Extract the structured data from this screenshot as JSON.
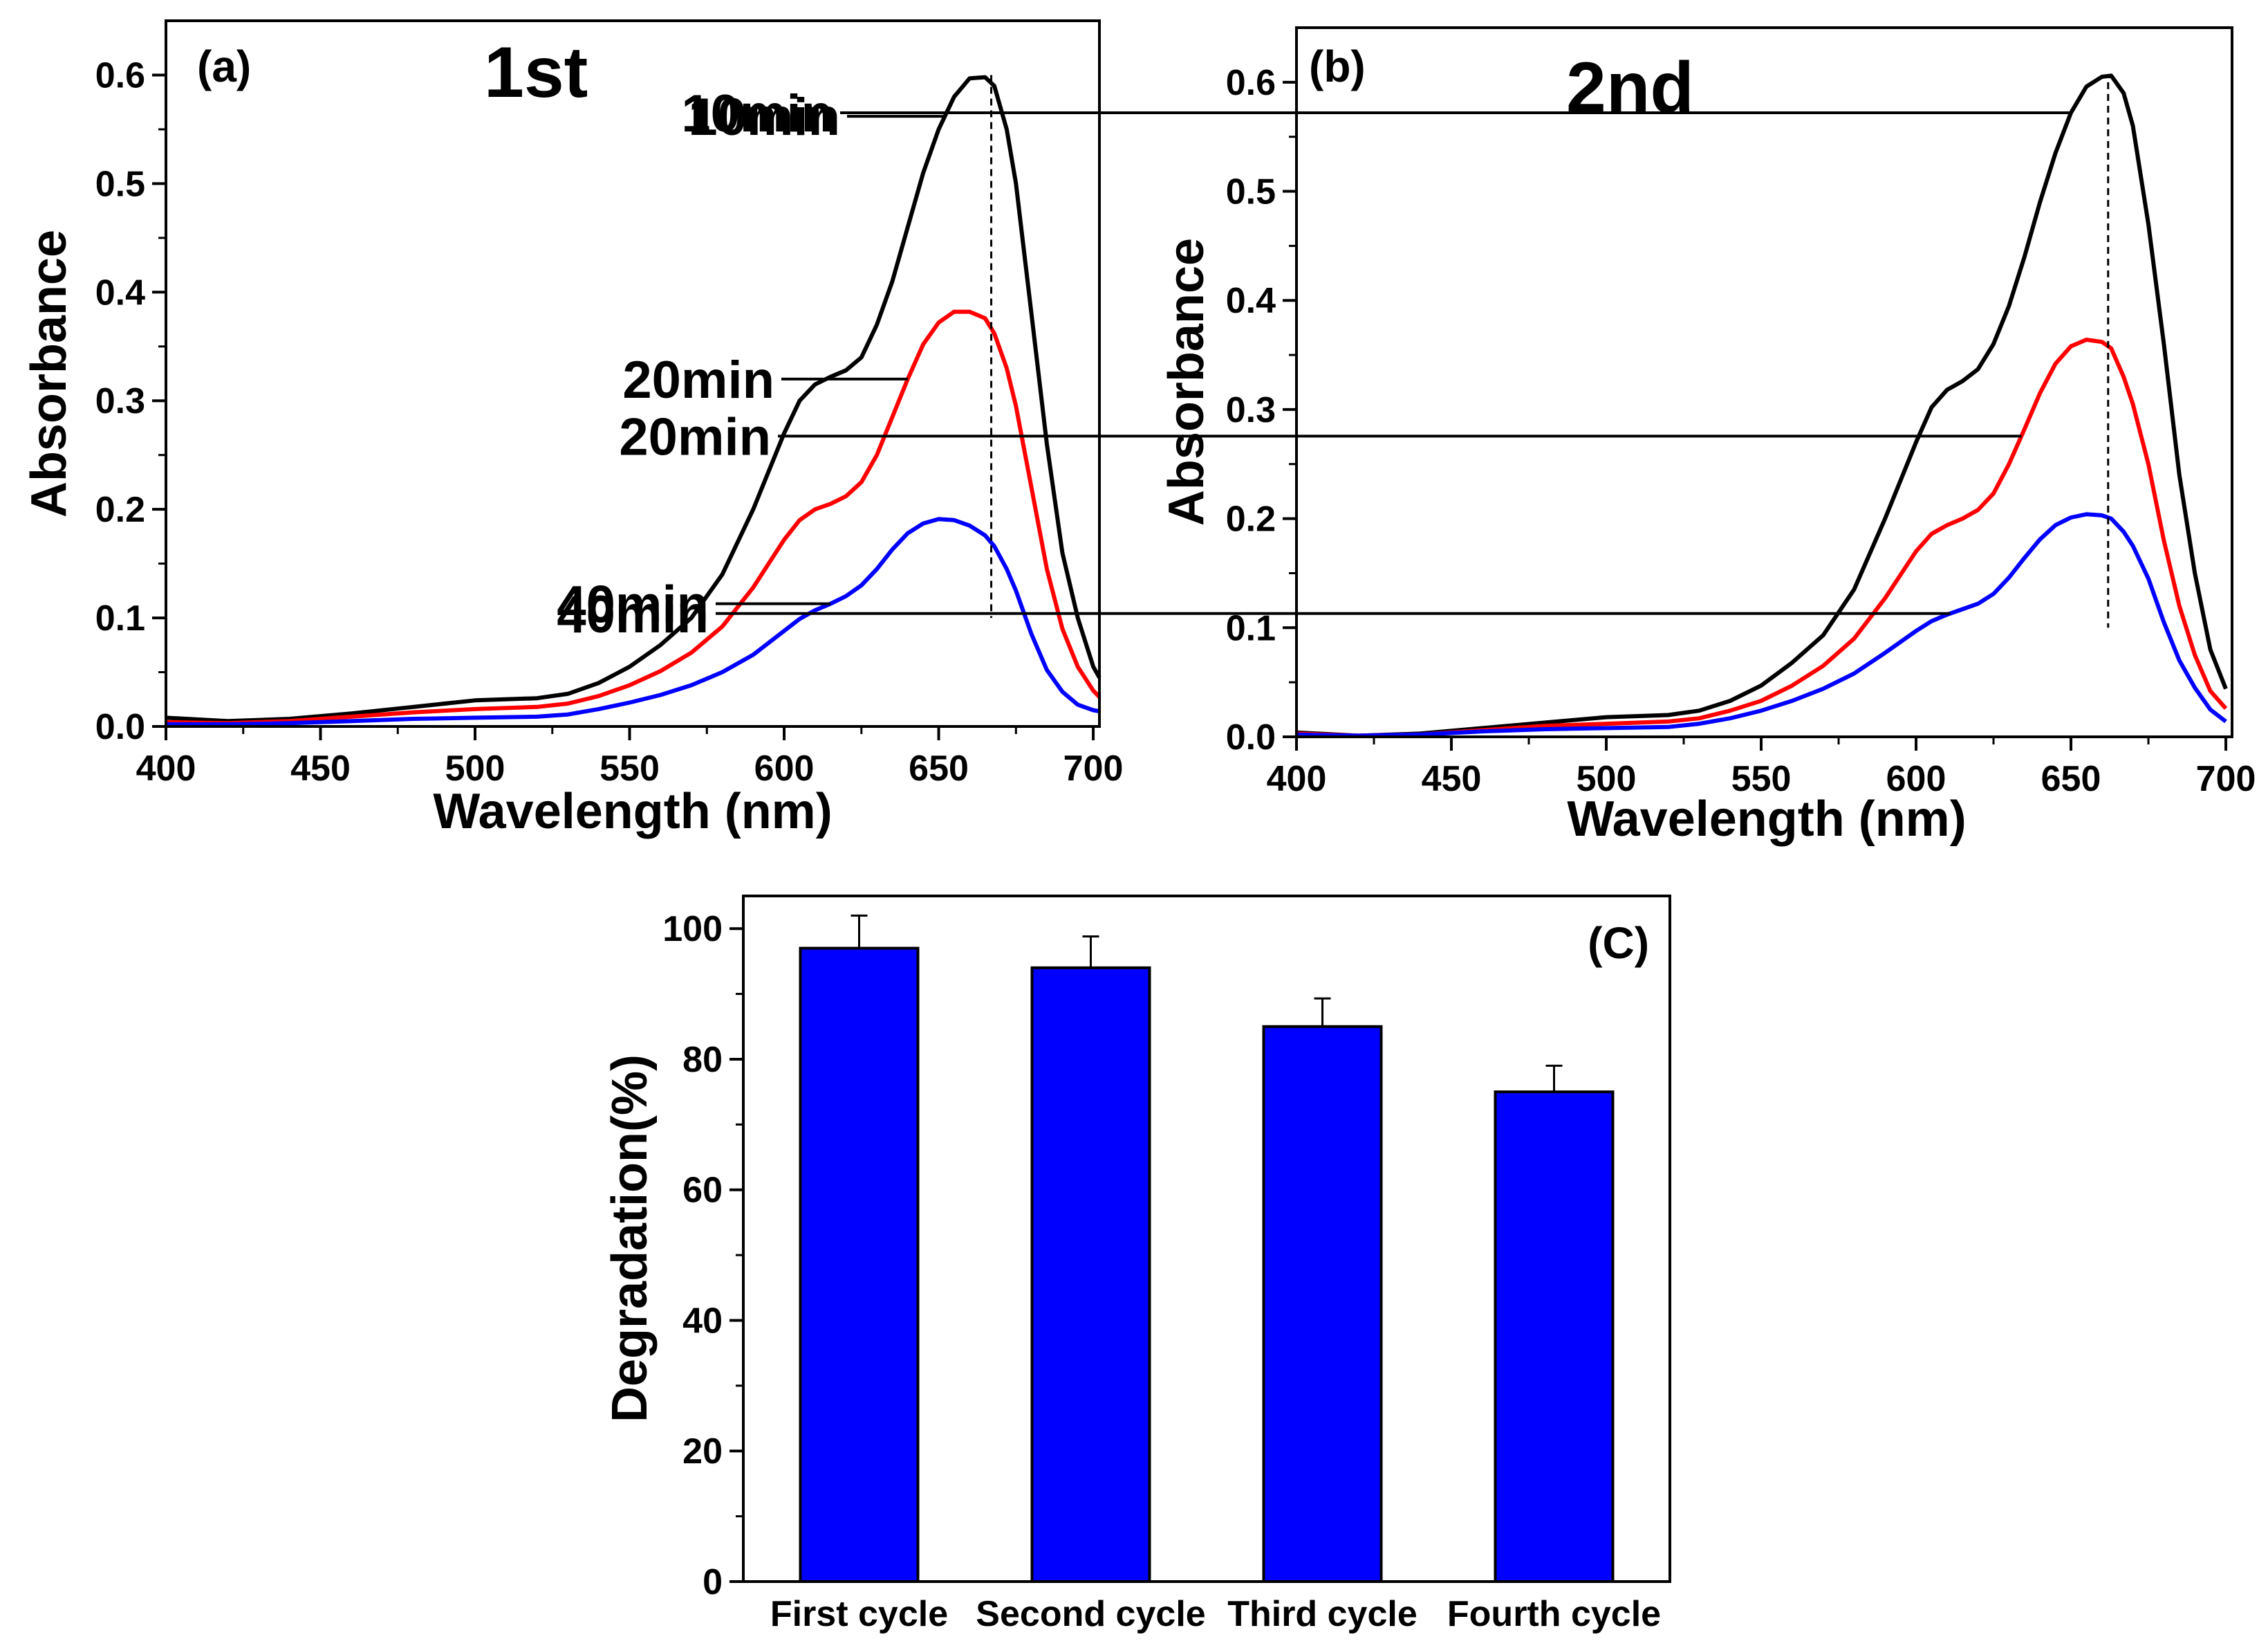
{
  "colors": {
    "10min": "#000000",
    "20min": "#ff0000",
    "40min": "#0000ff",
    "bar": "#0000ff"
  },
  "chart_data": [
    {
      "type": "line",
      "panel": "(a)",
      "title": "1st",
      "xlabel": "Wavelength (nm)",
      "ylabel": "Absorbance",
      "xlim": [
        400,
        702
      ],
      "ylim": [
        0,
        0.65
      ],
      "xticks": [
        400,
        450,
        500,
        550,
        600,
        650,
        700
      ],
      "yticks": [
        0.0,
        0.1,
        0.2,
        0.3,
        0.4,
        0.5,
        0.6
      ],
      "ytick_labels": [
        "0.0",
        "0.1",
        "0.2",
        "0.3",
        "0.4",
        "0.5",
        "0.6"
      ],
      "peak_marker_x": 667,
      "x": [
        400,
        420,
        440,
        460,
        480,
        500,
        520,
        530,
        540,
        550,
        560,
        570,
        580,
        590,
        600,
        605,
        610,
        615,
        620,
        625,
        630,
        635,
        640,
        645,
        650,
        655,
        660,
        665,
        668,
        672,
        675,
        680,
        685,
        690,
        695,
        700,
        702
      ],
      "series": [
        {
          "name": "10min",
          "values": [
            0.008,
            0.005,
            0.007,
            0.012,
            0.018,
            0.024,
            0.026,
            0.03,
            0.04,
            0.055,
            0.075,
            0.1,
            0.14,
            0.2,
            0.27,
            0.3,
            0.315,
            0.322,
            0.328,
            0.34,
            0.37,
            0.41,
            0.46,
            0.51,
            0.55,
            0.58,
            0.597,
            0.598,
            0.59,
            0.55,
            0.5,
            0.38,
            0.26,
            0.16,
            0.1,
            0.055,
            0.045
          ]
        },
        {
          "name": "20min",
          "values": [
            0.004,
            0.003,
            0.005,
            0.009,
            0.013,
            0.016,
            0.018,
            0.021,
            0.028,
            0.038,
            0.051,
            0.068,
            0.092,
            0.128,
            0.172,
            0.19,
            0.2,
            0.205,
            0.212,
            0.225,
            0.25,
            0.285,
            0.32,
            0.352,
            0.372,
            0.382,
            0.382,
            0.376,
            0.362,
            0.33,
            0.295,
            0.22,
            0.145,
            0.09,
            0.055,
            0.033,
            0.027
          ]
        },
        {
          "name": "40min",
          "values": [
            0.002,
            0.002,
            0.003,
            0.005,
            0.007,
            0.008,
            0.009,
            0.011,
            0.016,
            0.022,
            0.029,
            0.038,
            0.05,
            0.066,
            0.088,
            0.099,
            0.107,
            0.113,
            0.12,
            0.13,
            0.145,
            0.163,
            0.178,
            0.187,
            0.191,
            0.19,
            0.185,
            0.176,
            0.166,
            0.145,
            0.125,
            0.085,
            0.052,
            0.032,
            0.02,
            0.015,
            0.014
          ]
        }
      ],
      "annotations": [
        {
          "text": "10min",
          "series": "10min",
          "at_x": 652
        },
        {
          "text": "20min",
          "series": "20min",
          "at_x": 640
        },
        {
          "text": "40min",
          "series": "40min",
          "at_x": 615
        }
      ]
    },
    {
      "type": "line",
      "panel": "(b)",
      "title": "2nd",
      "xlabel": "Wavelength (nm)",
      "ylabel": "Absorbance",
      "xlim": [
        400,
        702
      ],
      "ylim": [
        0,
        0.65
      ],
      "xticks": [
        400,
        450,
        500,
        550,
        600,
        650,
        700
      ],
      "yticks": [
        0.0,
        0.1,
        0.2,
        0.3,
        0.4,
        0.5,
        0.6
      ],
      "ytick_labels": [
        "0.0",
        "0.1",
        "0.2",
        "0.3",
        "0.4",
        "0.5",
        "0.6"
      ],
      "peak_marker_x": 662,
      "x": [
        400,
        420,
        440,
        460,
        480,
        500,
        520,
        530,
        540,
        550,
        560,
        570,
        580,
        590,
        600,
        605,
        610,
        615,
        620,
        625,
        630,
        635,
        640,
        645,
        650,
        655,
        660,
        663,
        667,
        670,
        675,
        680,
        685,
        690,
        695,
        700
      ],
      "series": [
        {
          "name": "10min",
          "values": [
            0.004,
            0.001,
            0.003,
            0.008,
            0.013,
            0.018,
            0.02,
            0.024,
            0.033,
            0.047,
            0.068,
            0.093,
            0.135,
            0.2,
            0.27,
            0.302,
            0.318,
            0.326,
            0.337,
            0.36,
            0.395,
            0.44,
            0.49,
            0.535,
            0.572,
            0.596,
            0.605,
            0.606,
            0.59,
            0.56,
            0.47,
            0.36,
            0.24,
            0.15,
            0.08,
            0.044
          ]
        },
        {
          "name": "20min",
          "values": [
            0.003,
            0.001,
            0.002,
            0.006,
            0.01,
            0.012,
            0.014,
            0.017,
            0.024,
            0.033,
            0.047,
            0.065,
            0.09,
            0.127,
            0.17,
            0.186,
            0.194,
            0.2,
            0.208,
            0.223,
            0.25,
            0.282,
            0.315,
            0.342,
            0.358,
            0.364,
            0.362,
            0.356,
            0.33,
            0.305,
            0.25,
            0.18,
            0.12,
            0.075,
            0.042,
            0.026
          ]
        },
        {
          "name": "40min",
          "values": [
            0.002,
            0.001,
            0.002,
            0.005,
            0.007,
            0.008,
            0.009,
            0.012,
            0.017,
            0.024,
            0.033,
            0.044,
            0.058,
            0.077,
            0.097,
            0.106,
            0.112,
            0.117,
            0.122,
            0.131,
            0.146,
            0.164,
            0.181,
            0.194,
            0.201,
            0.204,
            0.203,
            0.2,
            0.188,
            0.175,
            0.145,
            0.105,
            0.07,
            0.045,
            0.025,
            0.014
          ]
        }
      ],
      "annotations": [
        {
          "text": "10min",
          "series": "10min",
          "at_x": 650
        },
        {
          "text": "20min",
          "series": "20min",
          "at_x": 634
        },
        {
          "text": "40min",
          "series": "40min",
          "at_x": 611
        }
      ]
    },
    {
      "type": "bar",
      "panel": "(C)",
      "xlabel": "",
      "ylabel": "Degradation(%)",
      "ylim": [
        0,
        105
      ],
      "yticks": [
        0,
        20,
        40,
        60,
        80,
        100
      ],
      "ytick_labels": [
        "0",
        "20",
        "40",
        "60",
        "80",
        "100"
      ],
      "categories": [
        "First cycle",
        "Second cycle",
        "Third cycle",
        "Fourth cycle"
      ],
      "values": [
        97,
        94,
        85,
        75
      ],
      "errors": [
        5,
        4.8,
        4.3,
        4
      ]
    }
  ]
}
